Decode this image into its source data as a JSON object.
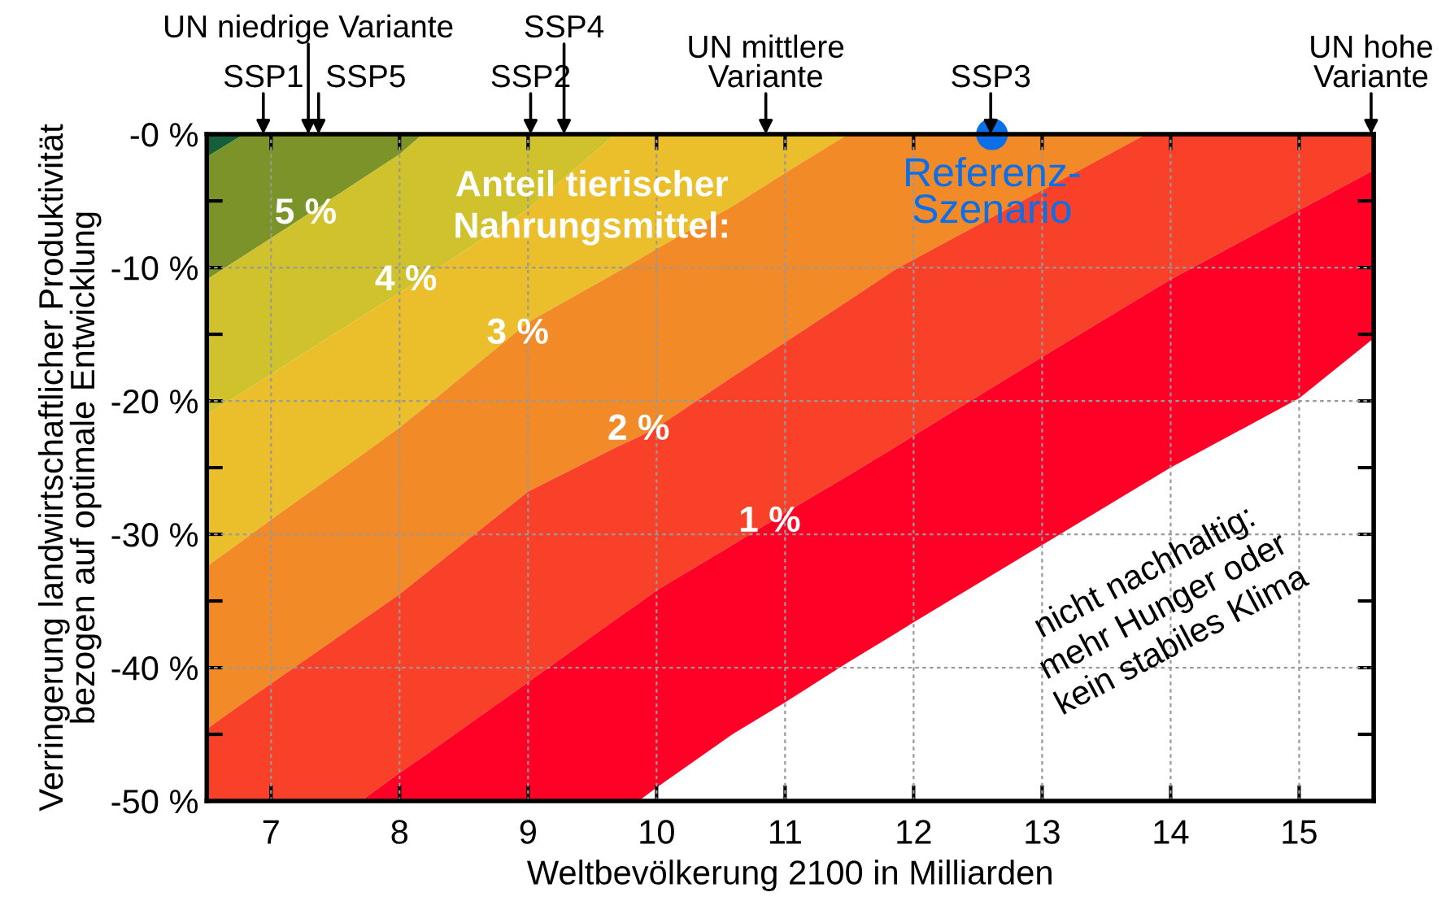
{
  "chart_data": {
    "type": "area",
    "stacked": true,
    "xlabel": "Weltbevölkerung 2100 in Milliarden",
    "ylabel": "Verringerung landwirtschaftlicher Produktivität\nbezogen auf optimale Entwicklung",
    "xlim": [
      6.5,
      15.58
    ],
    "ylim": [
      -50,
      0
    ],
    "xticks": [
      7,
      8,
      9,
      10,
      11,
      12,
      13,
      14,
      15
    ],
    "yticks": [
      {
        "value": 0,
        "label": "-0 %"
      },
      {
        "value": -5,
        "label": null
      },
      {
        "value": -10,
        "label": "-10 %"
      },
      {
        "value": -15,
        "label": null
      },
      {
        "value": -20,
        "label": "-20 %"
      },
      {
        "value": -25,
        "label": null
      },
      {
        "value": -30,
        "label": "-30 %"
      },
      {
        "value": -35,
        "label": null
      },
      {
        "value": -40,
        "label": "-40 %"
      },
      {
        "value": -45,
        "label": null
      },
      {
        "value": -50,
        "label": "-50 %"
      }
    ],
    "grid": true,
    "legend": false,
    "x": [
      6.5,
      6.79,
      7,
      7.7,
      8,
      8.18,
      9,
      9.68,
      9.86,
      10,
      10.59,
      11,
      11.49,
      11.85,
      12,
      13,
      13.81,
      14,
      15,
      15.58
    ],
    "series": [
      {
        "color": "#15603a",
        "values": [
          -1.7,
          0,
          0,
          0,
          0,
          0,
          0,
          0,
          0,
          0,
          0,
          0,
          0,
          0,
          0,
          0,
          0,
          0,
          0,
          0
        ]
      },
      {
        "color": "#7b9328",
        "values": [
          -9.2,
          -9.1,
          -7.8,
          -3.4,
          -1.5,
          0,
          0,
          0,
          0,
          0,
          0,
          0,
          0,
          0,
          0,
          0,
          0,
          0,
          0,
          0
        ]
      },
      {
        "color": "#cfc22c",
        "values": [
          -10.1,
          -10.2,
          -10.2,
          -10.3,
          -10.4,
          -10.8,
          -5.6,
          0,
          0,
          0,
          0,
          0,
          0,
          0,
          0,
          0,
          0,
          0,
          0,
          0
        ]
      },
      {
        "color": "#ebbf2c",
        "values": [
          -11.4,
          -11.1,
          -10.9,
          -10.4,
          -10.1,
          -9.8,
          -8.5,
          -10.4,
          -9.4,
          -8.6,
          -5.4,
          -2.9,
          0,
          0,
          0,
          0,
          0,
          0,
          0,
          0
        ]
      },
      {
        "color": "#f28a28",
        "values": [
          -12.2,
          -12.2,
          -12.3,
          -12.4,
          -12.5,
          -12.5,
          -12.7,
          -13.1,
          -13.3,
          -13.4,
          -12.8,
          -12.7,
          -12.5,
          -10.2,
          -9.4,
          -4.2,
          0,
          0,
          0,
          0
        ]
      },
      {
        "color": "#f84128",
        "values": [
          -5.4,
          -7.4,
          -8.8,
          -13.5,
          -13.4,
          -13.6,
          -14.3,
          -12.9,
          -12.5,
          -12.2,
          -12.6,
          -12.8,
          -13.1,
          -13.3,
          -13.2,
          -12.5,
          -12.0,
          -10.9,
          -5.7,
          -2.7
        ]
      },
      {
        "color": "#ff0026",
        "values": [
          0,
          0,
          0,
          0,
          -2.1,
          -3.3,
          -8.9,
          -13.6,
          -14.8,
          -14.8,
          -14.2,
          -14.2,
          -14.0,
          -14.0,
          -14.0,
          -14.1,
          -14.1,
          -14.1,
          -14.1,
          -12.6
        ]
      },
      {
        "type": "scatter",
        "name": "Referenz-\nSzenario",
        "color": "#0a6fe8",
        "x": [
          12.61
        ],
        "values": [
          0
        ],
        "marker": "circle"
      }
    ],
    "annotations": [
      {
        "text": "5 %",
        "x": 7.27,
        "y": -6.0
      },
      "Anteil tierischer\nNahrungsmittel:",
      {
        "text": "4 %",
        "x": 8.05,
        "y": -11.0
      },
      {
        "text": "3 %",
        "x": 8.92,
        "y": -15.0
      },
      {
        "text": "2 %",
        "x": 9.86,
        "y": -22.2
      },
      {
        "text": "1 %",
        "x": 10.88,
        "y": -29.1
      },
      "nicht nachhaltig:\nmehr Hunger oder\nkein stabiles Klima",
      {
        "text": "SSP1",
        "x": 6.94,
        "y": 0
      },
      {
        "text": "UN niedrige Variante",
        "x": 7.29,
        "y": 0
      },
      {
        "text": "SSP5",
        "x": 7.37,
        "y": 0
      },
      {
        "text": "SSP2",
        "x": 9.02,
        "y": 0
      },
      {
        "text": "SSP4",
        "x": 9.28,
        "y": 0
      },
      {
        "text": "UN mittlere\nVariante",
        "x": 10.85,
        "y": 0
      },
      {
        "text": "SSP3",
        "x": 12.6,
        "y": 0
      },
      {
        "text": "UN hohe\nVariante",
        "x": 15.56,
        "y": 0
      }
    ]
  }
}
